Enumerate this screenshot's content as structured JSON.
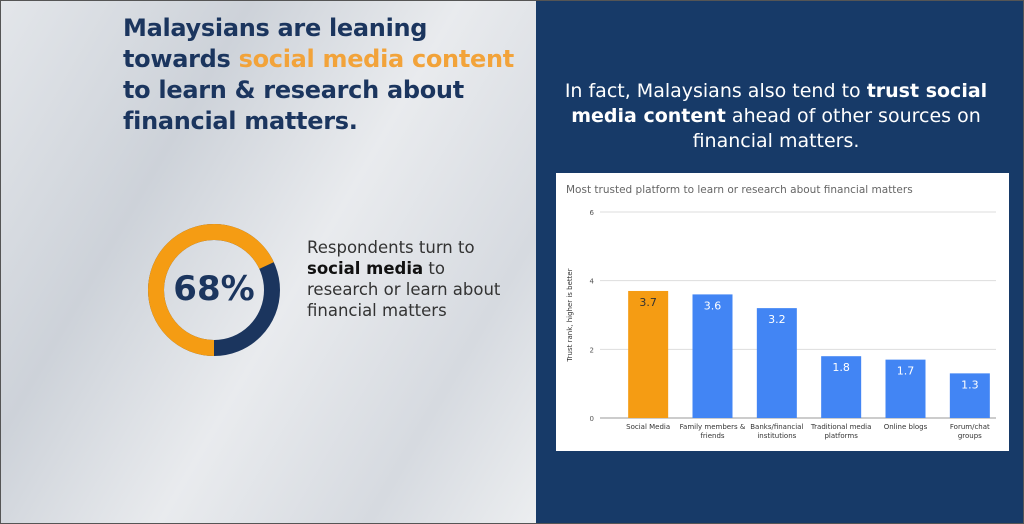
{
  "left": {
    "headline_pre": "Malaysians are leaning towards ",
    "headline_highlight": "social media content",
    "headline_post": " to learn & research about financial matters.",
    "stat": {
      "value": 68,
      "label": "68%"
    },
    "desc_pre": "Respondents turn to ",
    "desc_bold": "social media",
    "desc_post": " to research or learn about financial matters"
  },
  "right": {
    "sub_pre": "In fact, Malaysians also tend to ",
    "sub_bold": "trust social media content",
    "sub_post": " ahead of other sources on financial matters."
  },
  "colors": {
    "navy": "#173a68",
    "orange": "#f59c13",
    "blue": "#4285f4",
    "headline": "#1b355e",
    "highlight": "#f2a33a"
  },
  "chart_data": {
    "type": "bar",
    "title": "Most trusted platform to learn or research about financial matters",
    "ylabel": "Trust rank, higher is better",
    "xlabel": "",
    "ylim": [
      0,
      6
    ],
    "yticks": [
      "0",
      "2",
      "4",
      "6"
    ],
    "grid": true,
    "categories": [
      [
        "Social Media"
      ],
      [
        "Family members &",
        "friends"
      ],
      [
        "Banks/financial",
        "institutions"
      ],
      [
        "Traditional media",
        "platforms"
      ],
      [
        "Online blogs"
      ],
      [
        "Forum/chat",
        "groups"
      ]
    ],
    "values": [
      3.7,
      3.6,
      3.2,
      1.8,
      1.7,
      1.3
    ],
    "labels": [
      "3.7",
      "3.6",
      "3.2",
      "1.8",
      "1.7",
      "1.3"
    ],
    "bar_colors": [
      "#f59c13",
      "#4285f4",
      "#4285f4",
      "#4285f4",
      "#4285f4",
      "#4285f4"
    ]
  }
}
